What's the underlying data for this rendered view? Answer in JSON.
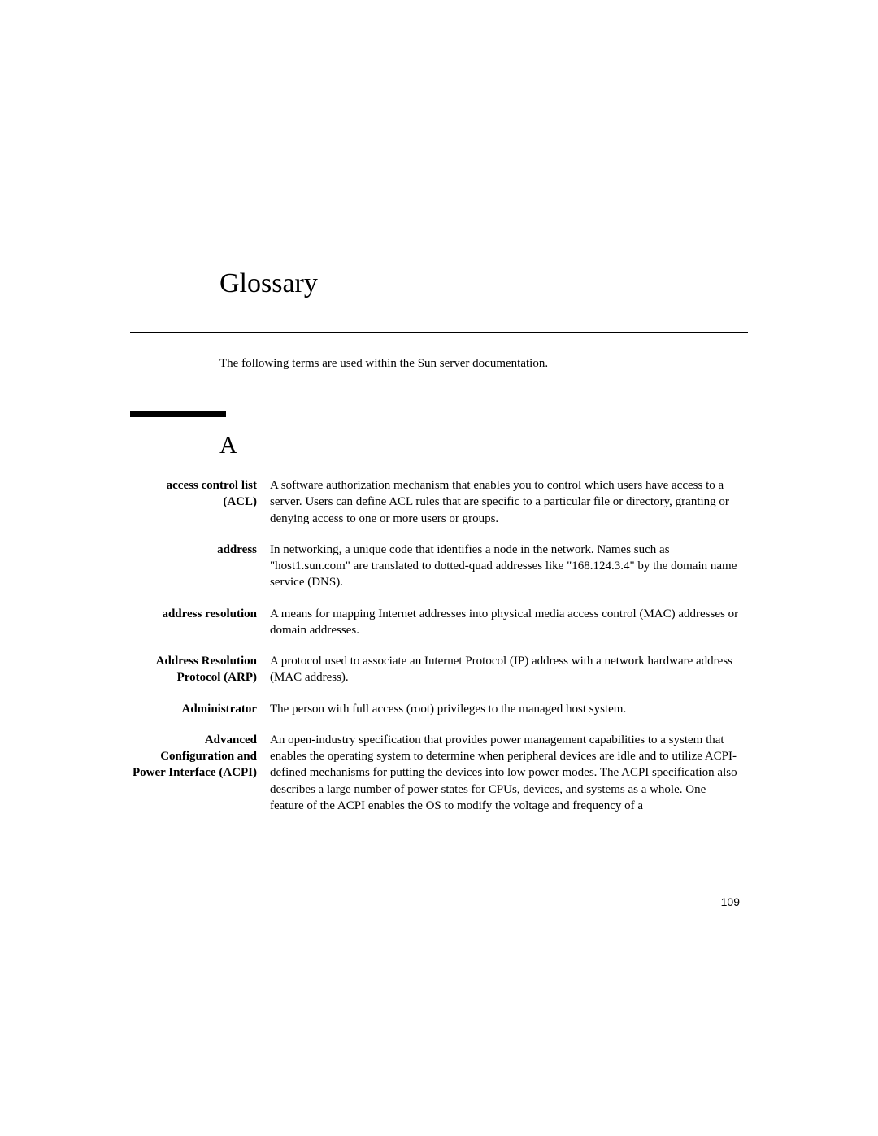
{
  "title": "Glossary",
  "intro": "The following terms are used within the Sun server documentation.",
  "section_letter": "A",
  "page_number": "109",
  "entries": [
    {
      "term": "access control list (ACL)",
      "definition": "A software authorization mechanism that enables you to control which users have access to a server. Users can define ACL rules that are specific to a particular file or directory, granting or denying access to one or more users or groups."
    },
    {
      "term": "address",
      "definition": "In networking, a unique code that identifies a node in the network. Names such as \"host1.sun.com\" are translated to dotted-quad addresses like \"168.124.3.4\" by the domain name service (DNS)."
    },
    {
      "term": "address resolution",
      "definition": "A means for mapping Internet addresses into physical media access control (MAC) addresses or domain addresses."
    },
    {
      "term": "Address Resolution Protocol (ARP)",
      "definition": "A protocol used to associate an Internet Protocol (IP) address with a network hardware address (MAC address)."
    },
    {
      "term": "Administrator",
      "definition": "The person with full access (root) privileges to the managed host system."
    },
    {
      "term": "Advanced Configuration and Power Interface (ACPI)",
      "definition": "An open-industry specification that provides power management capabilities to a system that enables the operating system to determine when peripheral devices are idle and to utilize ACPI-defined mechanisms for putting the devices into low power modes. The ACPI specification also describes a large number of power states for CPUs, devices, and systems as a whole. One feature of the ACPI enables the OS to modify the voltage and frequency of a"
    }
  ]
}
